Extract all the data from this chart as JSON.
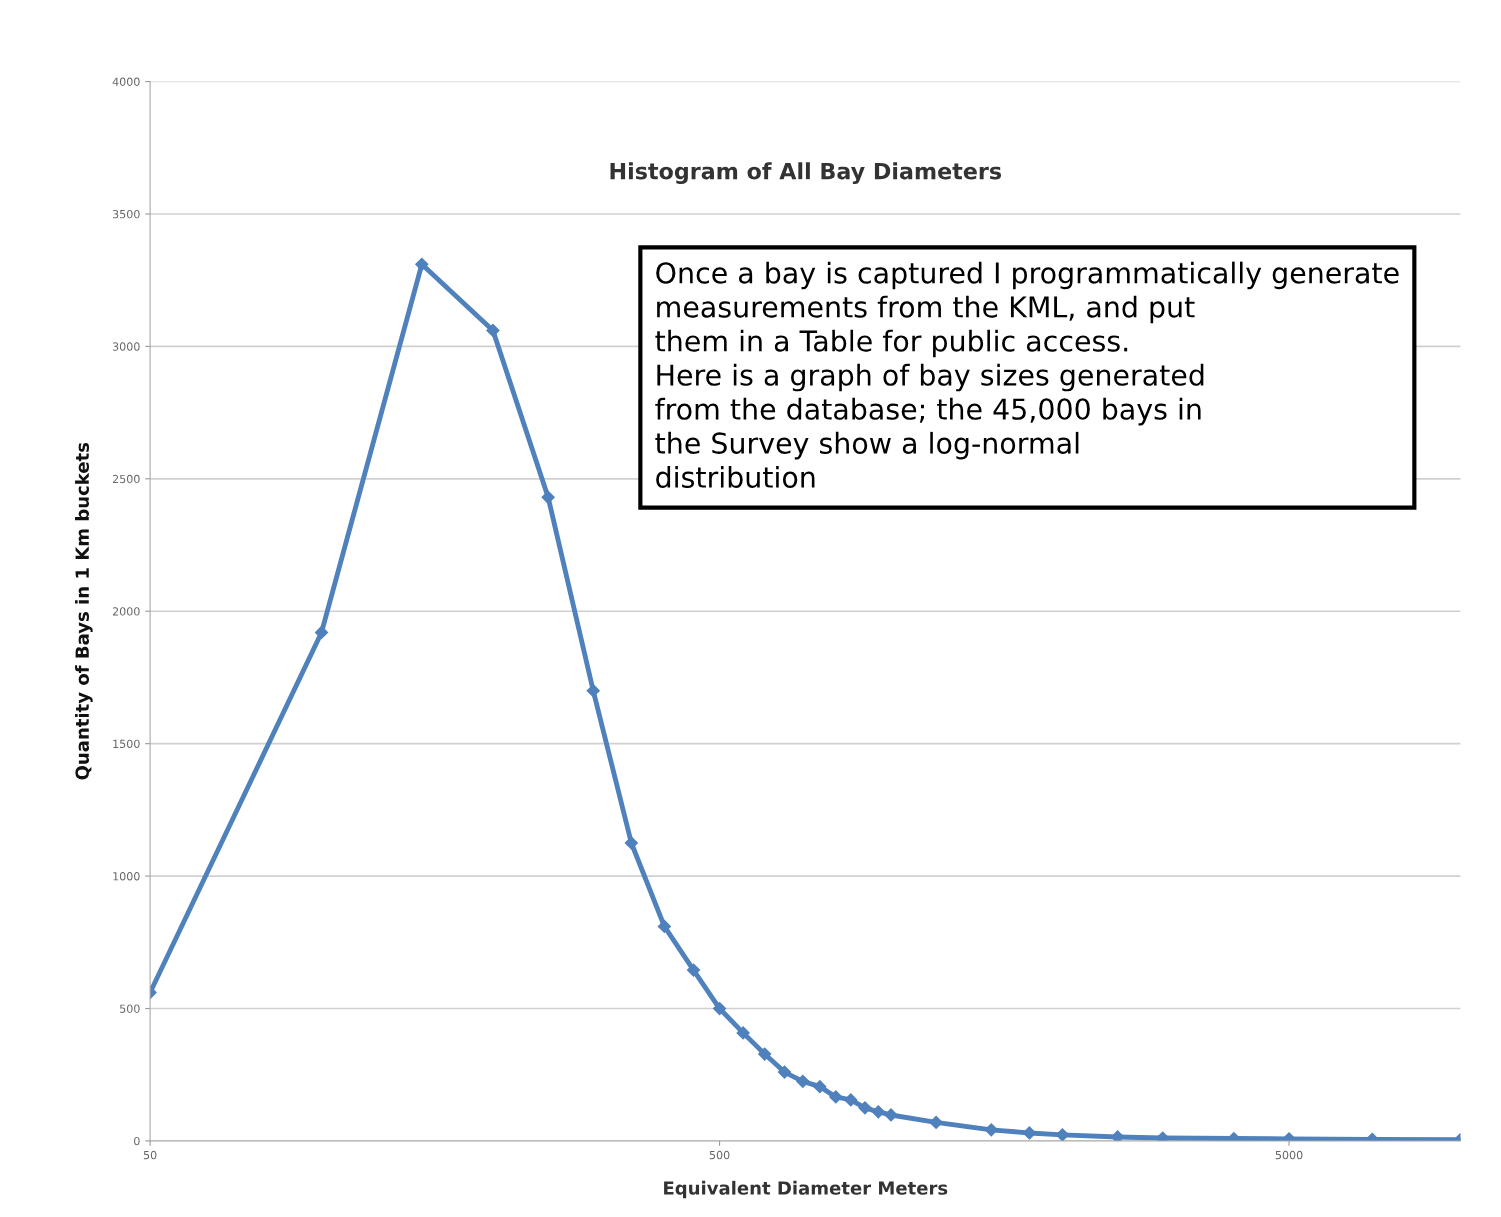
{
  "chart_data": {
    "type": "line",
    "title": "Histogram of All Bay Diameters",
    "xlabel": "Equivalent Diameter Meters",
    "ylabel": "Quantity of Bays in 1 Km buckets",
    "annotations": [
      "Once a bay is captured I programmatically generate\nmeasurements from the KML, and put\nthem in a Table for public access.\nHere is a graph of bay sizes generated\nfrom the database; the 45,000 bays in\nthe Survey show a log-normal\ndistribution"
    ],
    "series": [
      {
        "color": "#4f81bd",
        "x": [
          50,
          100,
          150,
          200,
          250,
          300,
          350,
          400,
          450,
          500,
          550,
          600,
          650,
          700,
          750,
          800,
          850,
          900,
          950,
          1000,
          1200,
          1500,
          1750,
          2000,
          2500,
          3000,
          4000,
          5000,
          7000,
          10000
        ],
        "values": [
          560,
          1920,
          3310,
          3060,
          2430,
          1700,
          1125,
          810,
          645,
          500,
          408,
          328,
          260,
          225,
          205,
          166,
          155,
          125,
          110,
          98,
          70,
          42,
          30,
          23,
          15,
          11,
          9,
          8,
          6,
          5
        ]
      }
    ],
    "log": "x",
    "xlim": [
      50,
      10000
    ],
    "xticks": [
      50,
      500,
      5000
    ],
    "ylim": [
      0,
      4000
    ],
    "yticks": [
      0,
      500,
      1000,
      1500,
      2000,
      2500,
      3000,
      3500,
      4000
    ],
    "grid": "y",
    "marker": "diamond",
    "line_style": "solid",
    "legend": false
  }
}
